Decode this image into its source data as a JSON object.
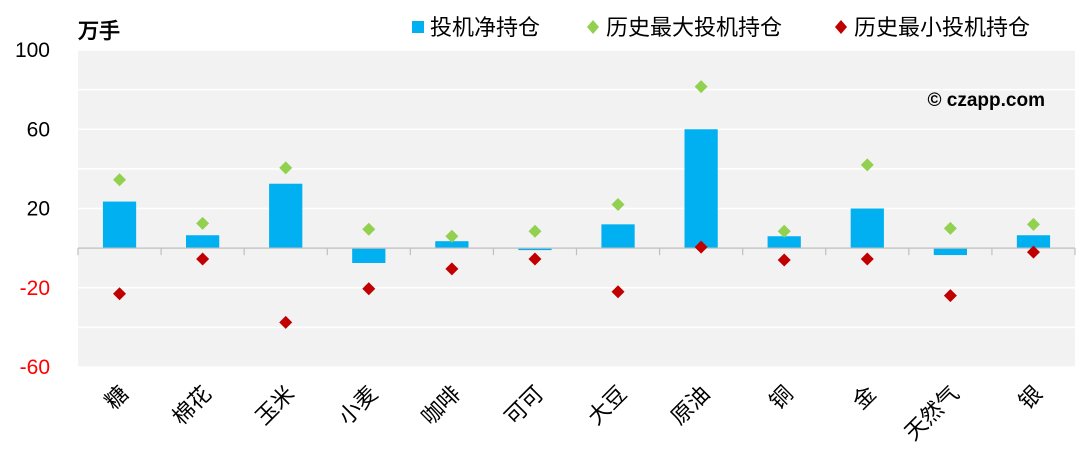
{
  "chart_data": {
    "type": "bar",
    "unit_label": "万手",
    "watermark": "© czapp.com",
    "categories": [
      "糖",
      "棉花",
      "玉米",
      "小麦",
      "咖啡",
      "可可",
      "大豆",
      "原油",
      "铜",
      "金",
      "天然气",
      "银"
    ],
    "series": [
      {
        "name": "投机净持仓",
        "type": "bar",
        "color": "#00B0F0",
        "values": [
          23.5,
          6.5,
          32.5,
          -7.5,
          3.5,
          -1,
          12,
          60,
          6,
          20,
          -3.5,
          6.5
        ]
      },
      {
        "name": "历史最大投机持仓",
        "type": "scatter",
        "marker": "diamond",
        "color": "#92D050",
        "values": [
          34.5,
          12.5,
          40.5,
          9.5,
          6,
          8.5,
          22,
          81.5,
          8.5,
          42,
          10,
          12
        ]
      },
      {
        "name": "历史最小投机持仓",
        "type": "scatter",
        "marker": "diamond",
        "color": "#C00000",
        "values": [
          -23,
          -5.5,
          -37.5,
          -20.5,
          -10.5,
          -5.5,
          -22,
          0.5,
          -6,
          -5.5,
          -24,
          -2
        ]
      }
    ],
    "y_ticks": [
      100,
      60,
      20,
      -20,
      -60
    ],
    "ylim": [
      -60,
      100
    ],
    "legend_position": "top",
    "grid": true,
    "colors": {
      "plot_bg": "#F2F2F2",
      "grid": "#FFFFFF",
      "positive_tick": "#000000",
      "negative_tick": "#FF0000"
    }
  }
}
